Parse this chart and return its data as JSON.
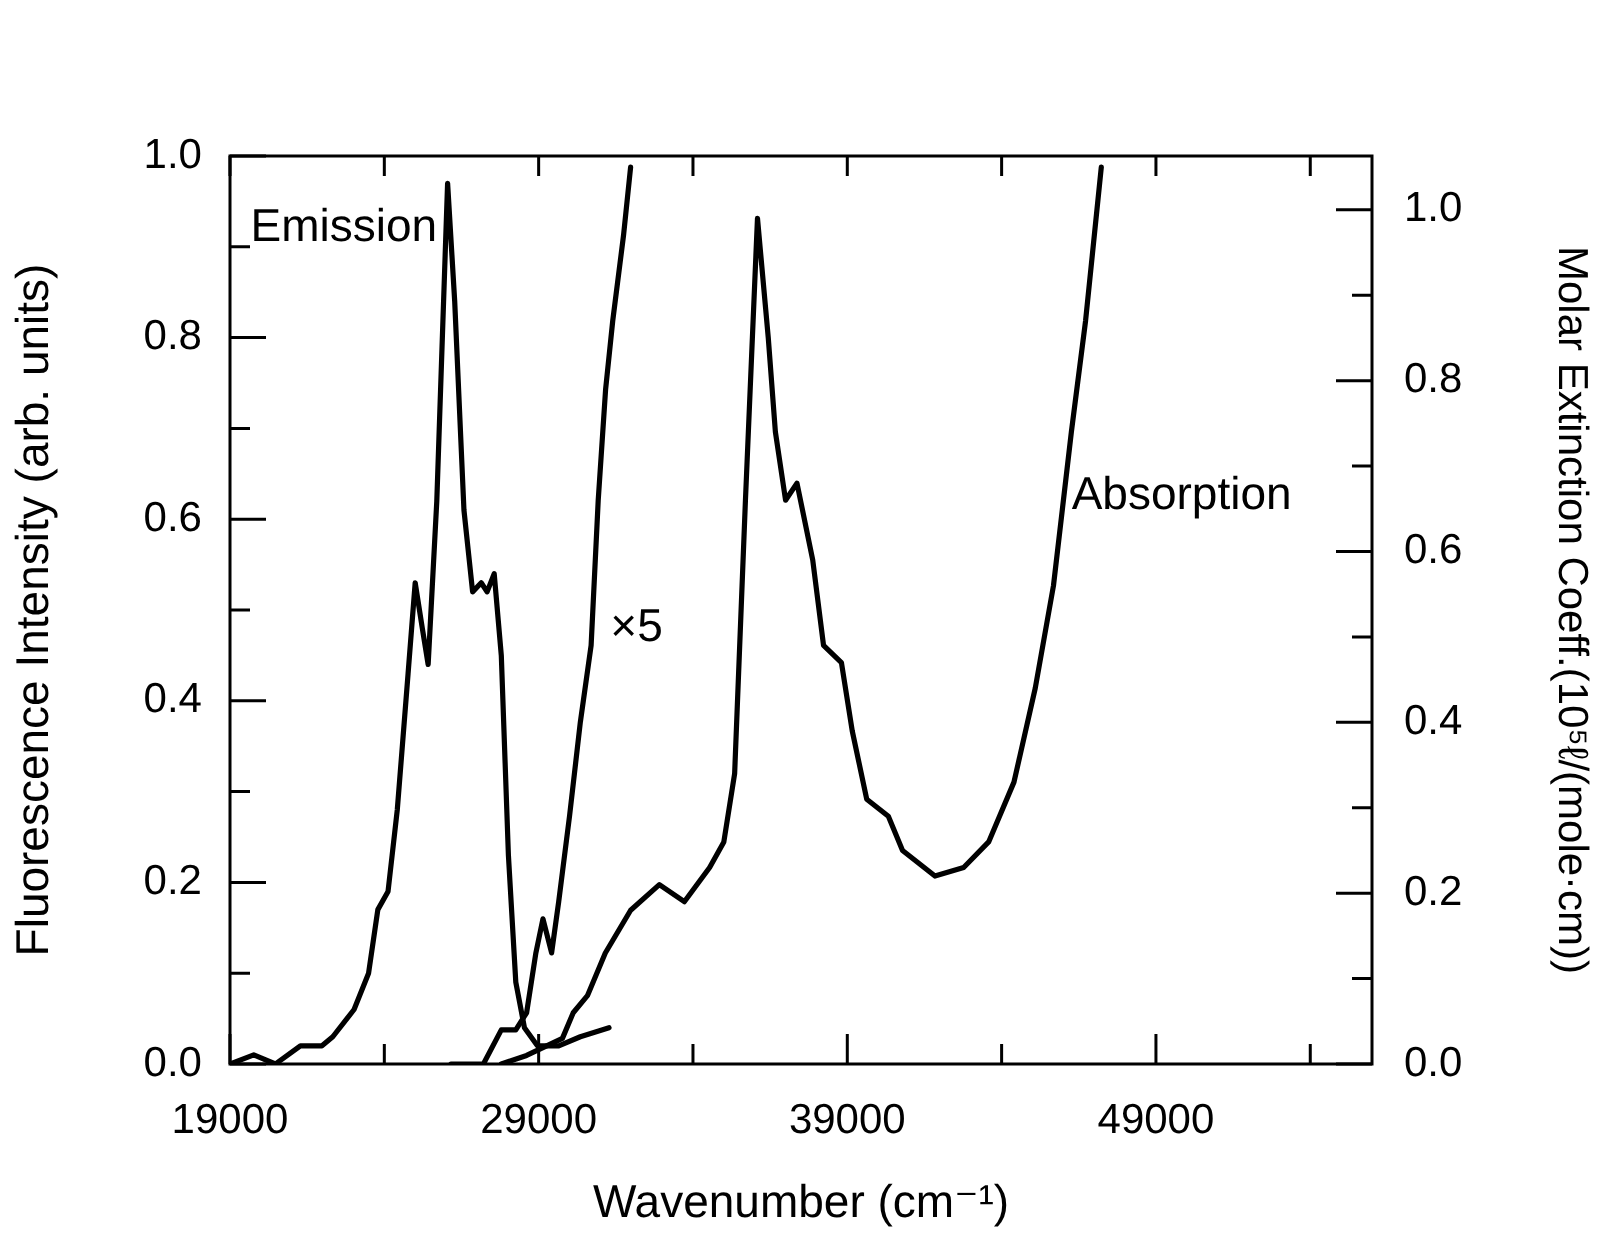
{
  "chart_data": {
    "type": "line",
    "xlabel": "Wavenumber (cm⁻¹)",
    "ylabel": "Fluorescence Intensity (arb. units)",
    "y2label": "Molar Extinction Coeff.(10⁵ℓ/(mole·cm))",
    "xlim": [
      19000,
      56000
    ],
    "xticks": [
      19000,
      {
        "value": 24000,
        "label": null
      },
      29000,
      {
        "value": 34000,
        "label": null
      },
      39000,
      {
        "value": 44000,
        "label": null
      },
      49000,
      {
        "value": 54000,
        "label": null
      }
    ],
    "ylim": [
      0,
      1
    ],
    "yticks": [
      {
        "value": 0,
        "label": "0.0"
      },
      {
        "value": 0.1,
        "label": null
      },
      {
        "value": 0.2,
        "label": "0.2"
      },
      {
        "value": 0.3,
        "label": null
      },
      {
        "value": 0.4,
        "label": "0.4"
      },
      {
        "value": 0.5,
        "label": null
      },
      {
        "value": 0.6,
        "label": "0.6"
      },
      {
        "value": 0.7,
        "label": null
      },
      {
        "value": 0.8,
        "label": "0.8"
      },
      {
        "value": 0.9,
        "label": null
      },
      {
        "value": 1,
        "label": "1.0"
      }
    ],
    "y2lim": [
      0,
      1.063
    ],
    "y2ticks": [
      {
        "value": 0,
        "label": "0.0"
      },
      {
        "value": 0.1,
        "label": null
      },
      {
        "value": 0.2,
        "label": "0.2"
      },
      {
        "value": 0.3,
        "label": null
      },
      {
        "value": 0.4,
        "label": "0.4"
      },
      {
        "value": 0.5,
        "label": null
      },
      {
        "value": 0.6,
        "label": "0.6"
      },
      {
        "value": 0.7,
        "label": null
      },
      {
        "value": 0.8,
        "label": "0.8"
      },
      {
        "value": 0.9,
        "label": null
      },
      {
        "value": 1,
        "label": "1.0"
      }
    ],
    "marker": "none",
    "line_style": "solid",
    "series": [
      {
        "color": "#000000",
        "x": [
          19000,
          19770,
          20470,
          21280,
          21980,
          22330,
          23020,
          23490,
          23790,
          24120,
          24420,
          24770,
          25000,
          25230,
          25420,
          25700,
          26050,
          26280,
          26580,
          26860,
          27140,
          27330,
          27560,
          27790,
          28020,
          28260,
          28540,
          28960,
          29650,
          30350,
          31280
        ],
        "values": [
          0,
          0.01,
          0,
          0.02,
          0.02,
          0.03,
          0.06,
          0.1,
          0.17,
          0.19,
          0.28,
          0.43,
          0.53,
          0.48,
          0.44,
          0.62,
          0.97,
          0.84,
          0.61,
          0.52,
          0.53,
          0.52,
          0.54,
          0.45,
          0.23,
          0.09,
          0.04,
          0.02,
          0.02,
          0.03,
          0.04
        ]
      },
      {
        "color": "#000000",
        "axis": "y2",
        "x": [
          26160,
          27210,
          27790,
          28260,
          28610,
          28910,
          29140,
          29420,
          29650,
          30000,
          30350,
          30700,
          30930,
          31170,
          31400,
          31750,
          31980
        ],
        "values": [
          0,
          0,
          0.04,
          0.04,
          0.06,
          0.13,
          0.17,
          0.13,
          0.19,
          0.29,
          0.4,
          0.49,
          0.66,
          0.79,
          0.87,
          0.97,
          1.05
        ]
      },
      {
        "color": "#000000",
        "axis": "y2",
        "x": [
          27790,
          28610,
          29190,
          29770,
          30120,
          30580,
          31160,
          31980,
          32910,
          33720,
          34540,
          35000,
          35350,
          35700,
          36090,
          36440,
          36670,
          37000,
          37370,
          37880,
          38230,
          38810,
          39160,
          39630,
          40330,
          40790,
          41840,
          42770,
          43580,
          44400,
          45090,
          45680,
          46260,
          46720,
          47230
        ],
        "values": [
          0,
          0.01,
          0.02,
          0.03,
          0.06,
          0.08,
          0.13,
          0.18,
          0.21,
          0.19,
          0.23,
          0.26,
          0.34,
          0.66,
          0.99,
          0.85,
          0.74,
          0.66,
          0.68,
          0.59,
          0.49,
          0.47,
          0.39,
          0.31,
          0.29,
          0.25,
          0.22,
          0.23,
          0.26,
          0.33,
          0.44,
          0.56,
          0.74,
          0.87,
          1.05
        ]
      }
    ],
    "annotations": [
      "Emission",
      "×5",
      "Absorption"
    ]
  }
}
